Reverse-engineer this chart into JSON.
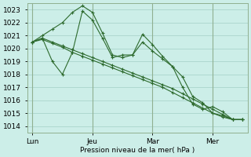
{
  "bg_color": "#cceee8",
  "grid_color": "#aad4cc",
  "line_color": "#2d6a2d",
  "marker_color": "#2d6a2d",
  "xlabel_text": "Pression niveau de la mer( hPa )",
  "ylim": [
    1013.5,
    1023.5
  ],
  "yticks": [
    1014,
    1015,
    1016,
    1017,
    1018,
    1019,
    1020,
    1021,
    1022,
    1023
  ],
  "xtick_labels": [
    "Lun",
    "Jeu",
    "Mar",
    "Mer"
  ],
  "xtick_positions": [
    0,
    6,
    12,
    18
  ],
  "vline_color": "#90b090",
  "series": [
    [
      1020.5,
      1021.0,
      1021.5,
      1022.0,
      1022.8,
      1023.3,
      1022.8,
      1021.2,
      1019.5,
      1019.3,
      1019.5,
      1021.1,
      1020.3,
      1019.4,
      1018.6,
      1017.0,
      1015.7,
      1015.3,
      1015.5,
      1015.1,
      1014.5,
      1014.5
    ],
    [
      1020.5,
      1020.8,
      1019.0,
      1018.0,
      1019.7,
      1022.9,
      1022.2,
      1020.8,
      1019.3,
      1019.5,
      1019.5,
      1020.5,
      1019.8,
      1019.2,
      1018.6,
      1017.8,
      1016.3,
      1015.8,
      1015.0,
      1014.8,
      1014.5,
      1014.5
    ],
    [
      1020.5,
      1020.8,
      1020.5,
      1020.2,
      1019.9,
      1019.6,
      1019.3,
      1019.0,
      1018.7,
      1018.4,
      1018.1,
      1017.8,
      1017.5,
      1017.2,
      1016.9,
      1016.5,
      1016.1,
      1015.7,
      1015.3,
      1014.9,
      1014.5,
      1014.5
    ],
    [
      1020.5,
      1020.7,
      1020.4,
      1020.1,
      1019.7,
      1019.4,
      1019.1,
      1018.8,
      1018.5,
      1018.2,
      1017.9,
      1017.6,
      1017.3,
      1017.0,
      1016.6,
      1016.2,
      1015.8,
      1015.4,
      1015.0,
      1014.7,
      1014.5,
      1014.5
    ]
  ]
}
